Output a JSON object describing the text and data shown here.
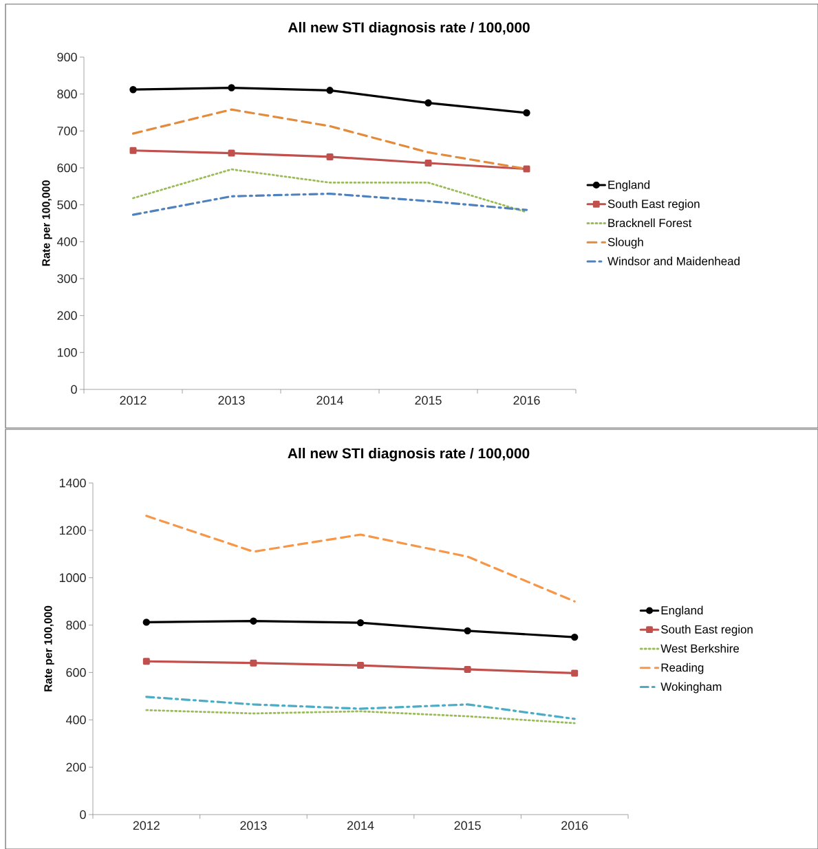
{
  "chart_data": [
    {
      "type": "line",
      "title": "All new STI diagnosis rate / 100,000",
      "ylabel": "Rate per 100,000",
      "categories": [
        "2012",
        "2013",
        "2014",
        "2015",
        "2016"
      ],
      "ylim": [
        0,
        900
      ],
      "yticks": [
        0,
        100,
        200,
        300,
        400,
        500,
        600,
        700,
        800,
        900
      ],
      "grid": false,
      "legend": "right",
      "series": [
        {
          "name": "England",
          "color": "#000000",
          "marker": "circle",
          "line_style": "solid",
          "values": [
            812,
            817,
            810,
            776,
            749
          ]
        },
        {
          "name": "South East region",
          "color": "#c0504d",
          "marker": "square",
          "line_style": "solid",
          "values": [
            647,
            640,
            630,
            613,
            597
          ]
        },
        {
          "name": "Bracknell Forest",
          "color": "#9bbb59",
          "marker": "none",
          "line_style": "dotted",
          "values": [
            518,
            596,
            560,
            560,
            480
          ]
        },
        {
          "name": "Slough",
          "color": "#e38b3c",
          "marker": "none",
          "line_style": "dashed",
          "values": [
            693,
            758,
            713,
            642,
            597
          ]
        },
        {
          "name": "Windsor and Maidenhead",
          "color": "#4f81bd",
          "marker": "none",
          "line_style": "dashdot",
          "values": [
            473,
            523,
            530,
            510,
            486
          ]
        }
      ]
    },
    {
      "type": "line",
      "title": "All new STI diagnosis rate / 100,000",
      "ylabel": "Rate per 100,000",
      "categories": [
        "2012",
        "2013",
        "2014",
        "2015",
        "2016"
      ],
      "ylim": [
        0,
        1400
      ],
      "yticks": [
        0,
        200,
        400,
        600,
        800,
        1000,
        1200,
        1400
      ],
      "grid": false,
      "legend": "right",
      "series": [
        {
          "name": "England",
          "color": "#000000",
          "marker": "circle",
          "line_style": "solid",
          "values": [
            812,
            817,
            810,
            776,
            749
          ]
        },
        {
          "name": "South East region",
          "color": "#c0504d",
          "marker": "square",
          "line_style": "solid",
          "values": [
            647,
            640,
            630,
            613,
            597
          ]
        },
        {
          "name": "West Berkshire",
          "color": "#9bbb59",
          "marker": "none",
          "line_style": "dotted",
          "values": [
            441,
            427,
            436,
            415,
            386
          ]
        },
        {
          "name": "Reading",
          "color": "#f79646",
          "marker": "none",
          "line_style": "dashed",
          "values": [
            1261,
            1110,
            1182,
            1089,
            900
          ]
        },
        {
          "name": "Wokingham",
          "color": "#4bacc6",
          "marker": "none",
          "line_style": "dashdot",
          "values": [
            497,
            465,
            447,
            465,
            404
          ]
        }
      ]
    }
  ]
}
